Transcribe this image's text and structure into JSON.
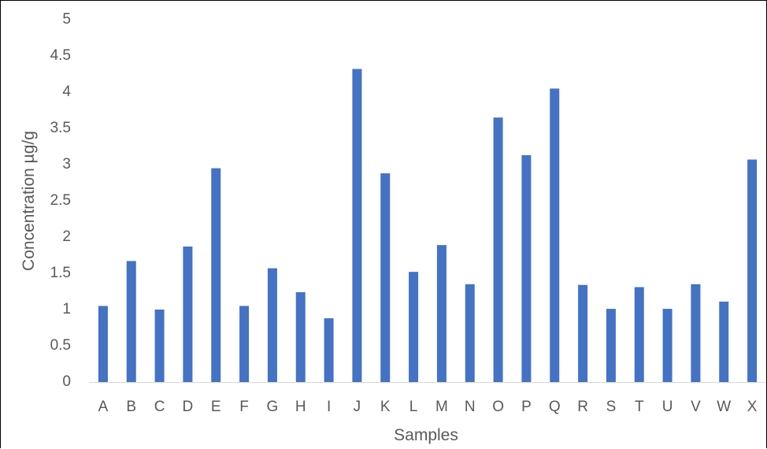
{
  "chart_data": {
    "type": "bar",
    "title": "",
    "xlabel": "Samples",
    "ylabel": "Concentration µg/g",
    "categories": [
      "A",
      "B",
      "C",
      "D",
      "E",
      "F",
      "G",
      "H",
      "I",
      "J",
      "K",
      "L",
      "M",
      "N",
      "O",
      "P",
      "Q",
      "R",
      "S",
      "T",
      "U",
      "V",
      "W",
      "X"
    ],
    "values": [
      1.05,
      1.67,
      1.0,
      1.87,
      2.95,
      1.05,
      1.57,
      1.24,
      0.88,
      4.32,
      2.88,
      1.52,
      1.89,
      1.35,
      3.65,
      3.13,
      4.05,
      1.34,
      1.01,
      1.31,
      1.01,
      1.35,
      1.11,
      3.07
    ],
    "ylim": [
      0,
      5
    ],
    "yticks": [
      "0",
      "0.5",
      "1",
      "1.5",
      "2",
      "2.5",
      "3",
      "3.5",
      "4",
      "4.5",
      "5"
    ],
    "grid": false,
    "legend": "none",
    "bar_color": "#4472C4",
    "axis_color": "#D9D9D9"
  }
}
